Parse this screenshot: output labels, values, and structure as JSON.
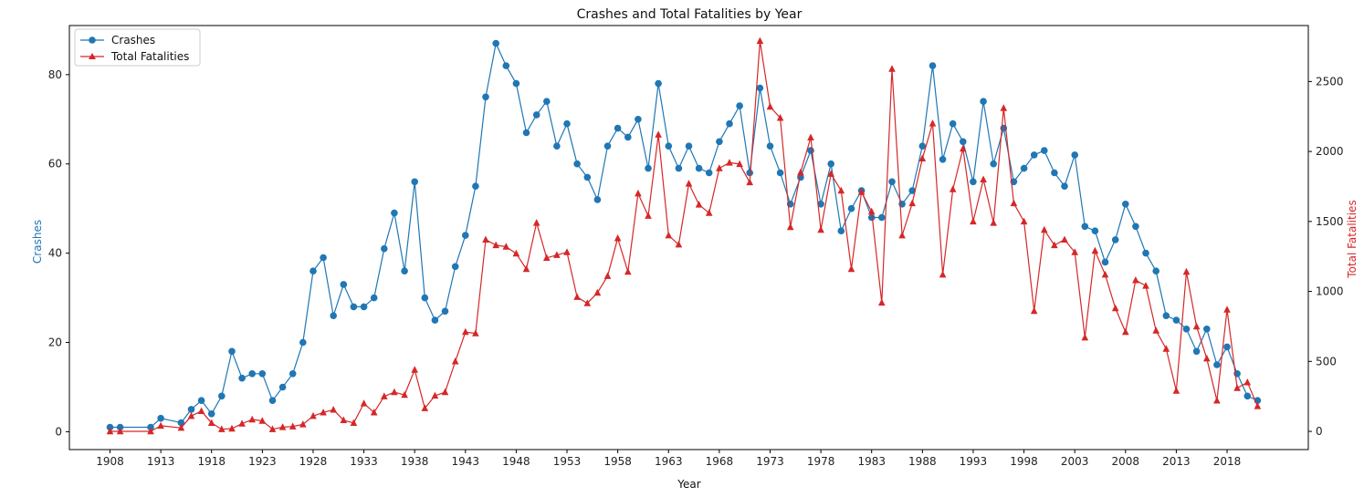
{
  "chart_data": {
    "type": "line",
    "title": "Crashes and Total Fatalities by Year",
    "xlabel": "Year",
    "ylabel_left": "Crashes",
    "ylabel_right": "Total Fatalities",
    "xlim": [
      1904,
      2026
    ],
    "xticks": [
      1908,
      1913,
      1918,
      1923,
      1928,
      1933,
      1938,
      1943,
      1948,
      1953,
      1958,
      1963,
      1968,
      1973,
      1978,
      1983,
      1988,
      1993,
      1998,
      2003,
      2008,
      2013,
      2018
    ],
    "ylim_left": [
      -4,
      91
    ],
    "yticks_left": [
      0,
      20,
      40,
      60,
      80
    ],
    "ylim_right": [
      -130,
      2900
    ],
    "yticks_right": [
      0,
      500,
      1000,
      1500,
      2000,
      2500
    ],
    "grid": false,
    "legend_position": "top-left",
    "x": [
      1908,
      1909,
      1912,
      1913,
      1915,
      1916,
      1917,
      1918,
      1919,
      1920,
      1921,
      1922,
      1923,
      1924,
      1925,
      1926,
      1927,
      1928,
      1929,
      1930,
      1931,
      1932,
      1933,
      1934,
      1935,
      1936,
      1937,
      1938,
      1939,
      1940,
      1941,
      1942,
      1943,
      1944,
      1945,
      1946,
      1947,
      1948,
      1949,
      1950,
      1951,
      1952,
      1953,
      1954,
      1955,
      1956,
      1957,
      1958,
      1959,
      1960,
      1961,
      1962,
      1963,
      1964,
      1965,
      1966,
      1967,
      1968,
      1969,
      1970,
      1971,
      1972,
      1973,
      1974,
      1975,
      1976,
      1977,
      1978,
      1979,
      1980,
      1981,
      1982,
      1983,
      1984,
      1985,
      1986,
      1987,
      1988,
      1989,
      1990,
      1991,
      1992,
      1993,
      1994,
      1995,
      1996,
      1997,
      1998,
      1999,
      2000,
      2001,
      2002,
      2003,
      2004,
      2005,
      2006,
      2007,
      2008,
      2009,
      2010,
      2011,
      2012,
      2013,
      2014,
      2015,
      2016,
      2017,
      2018,
      2019,
      2020,
      2021
    ],
    "series": [
      {
        "name": "Crashes",
        "axis": "left",
        "color": "#1f77b4",
        "marker": "circle",
        "values": [
          1,
          1,
          1,
          3,
          2,
          5,
          7,
          4,
          8,
          18,
          12,
          13,
          13,
          7,
          10,
          13,
          20,
          36,
          39,
          26,
          33,
          28,
          28,
          30,
          41,
          49,
          36,
          56,
          30,
          25,
          27,
          37,
          44,
          55,
          75,
          87,
          82,
          78,
          67,
          71,
          74,
          64,
          69,
          60,
          57,
          52,
          64,
          68,
          66,
          70,
          59,
          78,
          64,
          59,
          64,
          59,
          58,
          65,
          69,
          73,
          58,
          77,
          64,
          58,
          51,
          57,
          63,
          51,
          60,
          45,
          50,
          54,
          48,
          48,
          56,
          51,
          54,
          64,
          82,
          61,
          69,
          65,
          56,
          74,
          60,
          68,
          56,
          59,
          62,
          63,
          58,
          55,
          62,
          46,
          45,
          38,
          43,
          51,
          46,
          40,
          36,
          26,
          25,
          23,
          18,
          23,
          15,
          19,
          13,
          8,
          7
        ]
      },
      {
        "name": "Total Fatalities",
        "axis": "right",
        "color": "#d62728",
        "marker": "triangle",
        "values": [
          0,
          0,
          0,
          40,
          25,
          110,
          145,
          60,
          15,
          20,
          55,
          85,
          75,
          15,
          30,
          35,
          50,
          110,
          135,
          155,
          80,
          60,
          200,
          135,
          250,
          280,
          260,
          440,
          165,
          255,
          280,
          500,
          710,
          700,
          1370,
          1330,
          1320,
          1270,
          1160,
          1490,
          1240,
          1260,
          1280,
          960,
          915,
          990,
          1110,
          1380,
          1140,
          1700,
          1540,
          2120,
          1400,
          1335,
          1770,
          1620,
          1560,
          1880,
          1920,
          1910,
          1780,
          2790,
          2320,
          2240,
          1460,
          1850,
          2100,
          1440,
          1840,
          1720,
          1160,
          1710,
          1570,
          920,
          2590,
          1400,
          1630,
          1950,
          2200,
          1120,
          1730,
          2020,
          1500,
          1800,
          1490,
          2310,
          1630,
          1500,
          860,
          1440,
          1330,
          1370,
          1280,
          670,
          1290,
          1120,
          880,
          710,
          1080,
          1040,
          720,
          590,
          290,
          1140,
          750,
          520,
          220,
          870,
          310,
          350,
          180
        ]
      }
    ]
  }
}
